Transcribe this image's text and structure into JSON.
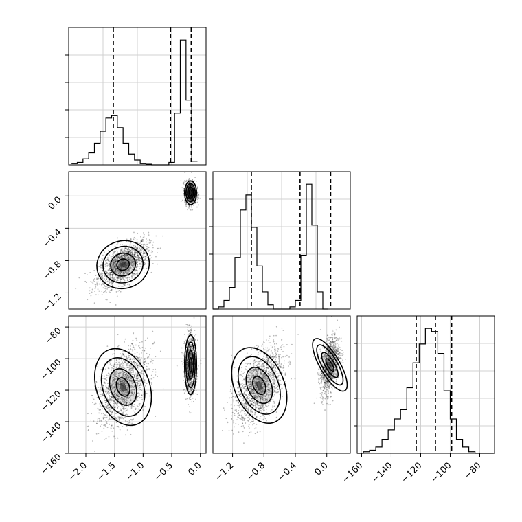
{
  "chart_data": [
    {
      "panel": "hist-param1",
      "type": "histogram",
      "xlim": [
        -2.3,
        0.1
      ],
      "bin_start": -2.25,
      "bin_width": 0.1,
      "counts": [
        1,
        2,
        5,
        10,
        18,
        28,
        39,
        41,
        31,
        18,
        9,
        4,
        1,
        0.5,
        0,
        0,
        0,
        2,
        43,
        104,
        54,
        3
      ],
      "quantiles": [
        -1.52,
        -0.52,
        -0.16
      ],
      "x_ticks": [],
      "y_ticks": []
    },
    {
      "panel": "corner-param1-param2",
      "type": "scatter",
      "xlim": [
        -2.3,
        0.1
      ],
      "ylim": [
        -1.4,
        0.3
      ],
      "clusters": [
        {
          "center": [
            -1.35,
            -0.85
          ],
          "sigma": [
            0.22,
            0.14
          ],
          "rho": 0.6,
          "n": 1500
        },
        {
          "center": [
            -0.17,
            0.04
          ],
          "sigma": [
            0.05,
            0.07
          ],
          "rho": 0.0,
          "n": 1100
        }
      ],
      "y_ticks": [
        0.0,
        -0.4,
        -0.8,
        -1.2
      ],
      "y_tick_labels": [
        "0.0",
        "−0.4",
        "−0.8",
        "−1.2"
      ]
    },
    {
      "panel": "hist-param2",
      "type": "histogram",
      "xlim": [
        -1.45,
        0.3
      ],
      "bin_start": -1.45,
      "bin_width": 0.07,
      "counts": [
        0,
        1,
        4,
        10,
        24,
        46,
        53,
        38,
        20,
        8,
        2,
        0,
        0,
        0,
        1,
        4,
        25,
        58,
        39,
        8,
        0
      ],
      "quantiles": [
        -0.96,
        -0.34,
        0.05
      ],
      "x_ticks": [],
      "y_ticks": []
    },
    {
      "panel": "corner-param1-param3",
      "type": "scatter",
      "xlim": [
        -2.3,
        0.1
      ],
      "ylim": [
        -160,
        -73
      ],
      "clusters": [
        {
          "center": [
            -1.35,
            -118
          ],
          "sigma": [
            0.22,
            12
          ],
          "rho": 0.45,
          "n": 1500
        },
        {
          "center": [
            -0.17,
            -104
          ],
          "sigma": [
            0.05,
            9
          ],
          "rho": 0.0,
          "n": 1100
        }
      ],
      "x_ticks": [
        -2.0,
        -1.5,
        -1.0,
        -0.5,
        0.0
      ],
      "x_tick_labels": [
        "−2.0",
        "−1.5",
        "−1.0",
        "−0.5",
        "0.0"
      ],
      "y_ticks": [
        -80,
        -100,
        -120,
        -140,
        -160
      ],
      "y_tick_labels": [
        "−80",
        "−100",
        "−120",
        "−140",
        "−160"
      ]
    },
    {
      "panel": "corner-param2-param3",
      "type": "scatter",
      "xlim": [
        -1.45,
        0.3
      ],
      "ylim": [
        -160,
        -73
      ],
      "clusters": [
        {
          "center": [
            -0.86,
            -117
          ],
          "sigma": [
            0.15,
            12
          ],
          "rho": 0.5,
          "n": 1500
        },
        {
          "center": [
            0.04,
            -104
          ],
          "sigma": [
            0.06,
            9
          ],
          "rho": 0.4,
          "n": 1100
        }
      ],
      "x_ticks": [
        -1.2,
        -0.8,
        -0.4,
        0.0
      ],
      "x_tick_labels": [
        "−1.2",
        "−0.8",
        "−0.4",
        "0.0"
      ]
    },
    {
      "panel": "hist-param3",
      "type": "histogram",
      "xlim": [
        -163,
        -70
      ],
      "bin_start": -163,
      "bin_width": 4.2,
      "counts": [
        0,
        1,
        2,
        4,
        9,
        15,
        22,
        28,
        42,
        58,
        70,
        80,
        78,
        64,
        40,
        22,
        9,
        4,
        1,
        0,
        0,
        0
      ],
      "quantiles": [
        -123,
        -110,
        -99
      ],
      "x_ticks": [
        -160,
        -140,
        -120,
        -100,
        -80
      ],
      "x_tick_labels": [
        "−160",
        "−140",
        "−120",
        "−100",
        "−80"
      ],
      "y_ticks": []
    }
  ]
}
